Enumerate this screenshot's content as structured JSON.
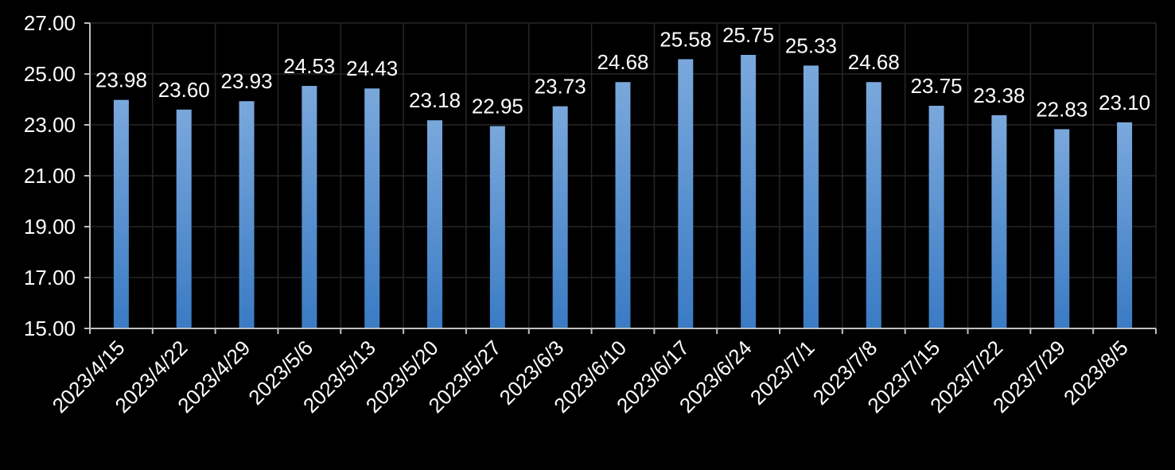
{
  "chart_data": {
    "type": "bar",
    "title": "",
    "xlabel": "",
    "ylabel": "",
    "categories": [
      "2023/4/15",
      "2023/4/22",
      "2023/4/29",
      "2023/5/6",
      "2023/5/13",
      "2023/5/20",
      "2023/5/27",
      "2023/6/3",
      "2023/6/10",
      "2023/6/17",
      "2023/6/24",
      "2023/7/1",
      "2023/7/8",
      "2023/7/15",
      "2023/7/22",
      "2023/7/29",
      "2023/8/5"
    ],
    "values": [
      23.98,
      23.6,
      23.93,
      24.53,
      24.43,
      23.18,
      22.95,
      23.73,
      24.68,
      25.58,
      25.75,
      25.33,
      24.68,
      23.75,
      23.38,
      22.83,
      23.1
    ],
    "value_labels": [
      "23.98",
      "23.60",
      "23.93",
      "24.53",
      "24.43",
      "23.18",
      "22.95",
      "23.73",
      "24.68",
      "25.58",
      "25.75",
      "25.33",
      "24.68",
      "23.75",
      "23.38",
      "22.83",
      "23.10"
    ],
    "ylim": [
      15,
      27
    ],
    "yticks": [
      15,
      17,
      19,
      21,
      23,
      25,
      27
    ],
    "ytick_labels": [
      "15.00",
      "17.00",
      "19.00",
      "21.00",
      "23.00",
      "25.00",
      "27.00"
    ],
    "grid": true,
    "legend": "none",
    "colors": {
      "background": "#000000",
      "bar_top": "#7aa8dc",
      "bar_bottom": "#3a7bc4",
      "grid": "#262626",
      "axis": "#bfbfbf",
      "text": "#ffffff"
    }
  }
}
